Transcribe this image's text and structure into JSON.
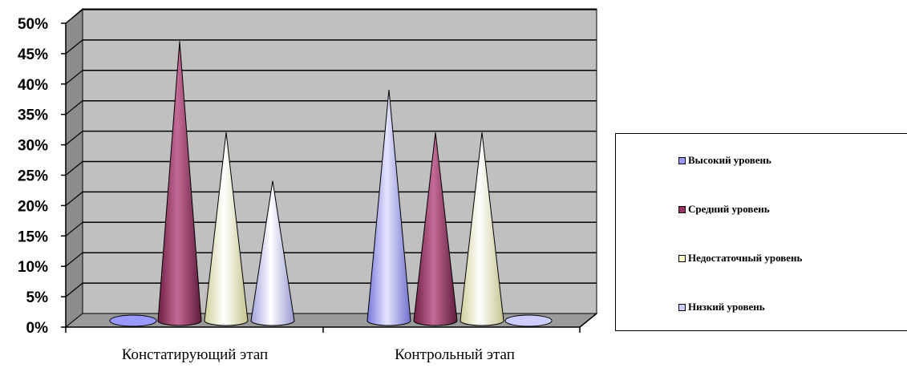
{
  "chart_data": {
    "type": "bar",
    "categories": [
      "Констатирующий этап",
      "Контрольный этап"
    ],
    "series": [
      {
        "name": "Высокий уровень",
        "values": [
          0,
          38
        ],
        "color": "#9999ff"
      },
      {
        "name": "Средний уровень",
        "values": [
          46,
          31
        ],
        "color": "#993366"
      },
      {
        "name": "Недостаточный уровень",
        "values": [
          31,
          31
        ],
        "color": "#ffffcc"
      },
      {
        "name": "Низкий уровень",
        "values": [
          23,
          0
        ],
        "color": "#ccccff"
      }
    ],
    "y_ticks": [
      "0%",
      "5%",
      "10%",
      "15%",
      "20%",
      "25%",
      "30%",
      "35%",
      "40%",
      "45%",
      "50%"
    ],
    "ylim": [
      0,
      50
    ],
    "grid": true,
    "legend_position": "right",
    "wall_color": "#c0c0c0"
  }
}
